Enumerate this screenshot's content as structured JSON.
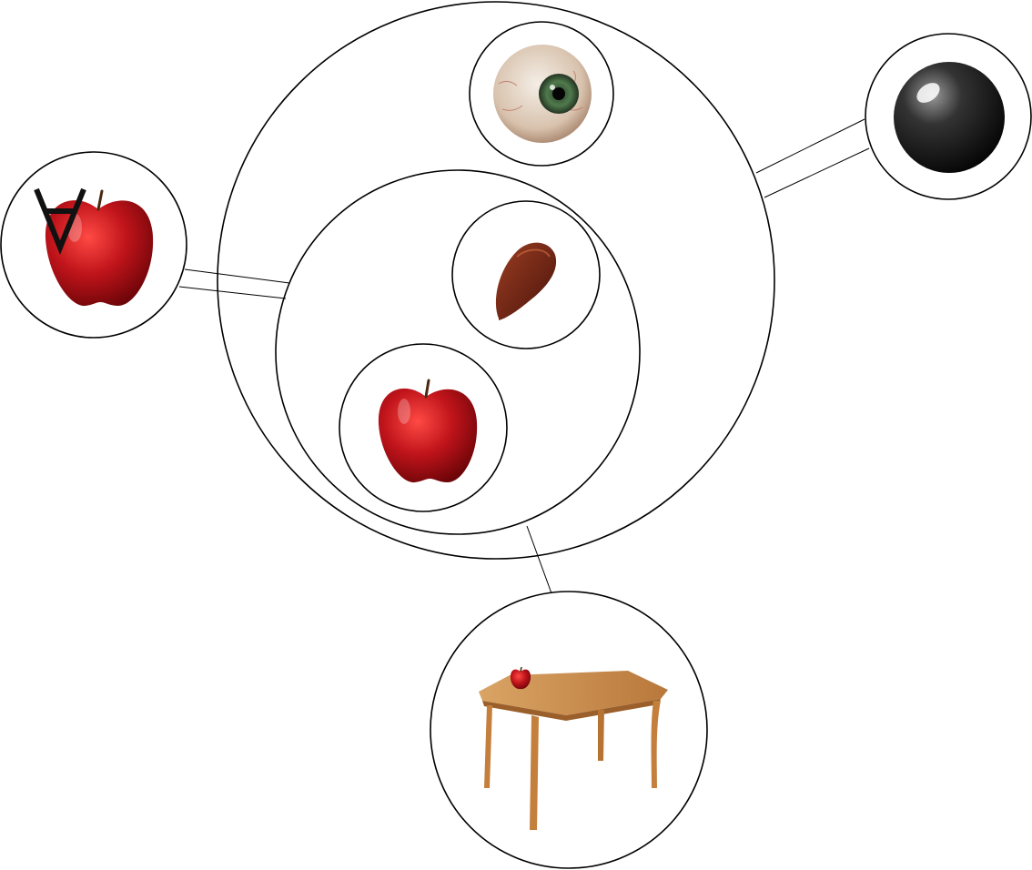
{
  "diagram": {
    "type": "nested-concept-diagram",
    "nodes": [
      {
        "id": "outer-group",
        "contains": [
          "eye",
          "inner-group"
        ]
      },
      {
        "id": "inner-group",
        "contains": [
          "seed",
          "apple"
        ]
      },
      {
        "id": "eye",
        "depicts": "eye-icon"
      },
      {
        "id": "seed",
        "depicts": "apple-seed-icon"
      },
      {
        "id": "apple",
        "depicts": "apple-icon"
      },
      {
        "id": "universal-apple",
        "depicts": "apple-icon",
        "symbol": "∀"
      },
      {
        "id": "sphere",
        "depicts": "black-sphere-icon"
      },
      {
        "id": "table-with-apple",
        "depicts": "table-icon"
      }
    ],
    "links": [
      {
        "from": "universal-apple",
        "to": "inner-group",
        "style": "double-line"
      },
      {
        "from": "sphere",
        "to": "outer-group",
        "style": "double-line"
      },
      {
        "from": "table-with-apple",
        "to": "inner-group",
        "style": "single-line"
      }
    ]
  },
  "colors": {
    "apple_red": "#c0141b",
    "iris_green": "#3f6b3f",
    "seed_brown": "#6b2414",
    "table_wood": "#c98b45"
  }
}
